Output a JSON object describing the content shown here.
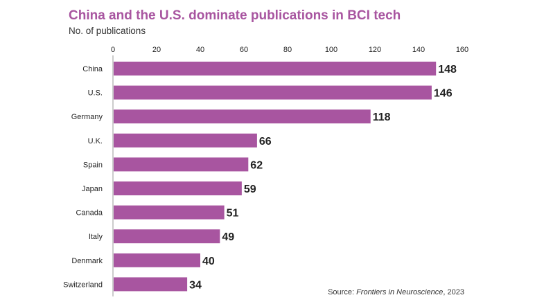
{
  "header": {
    "title": "China and the U.S. dominate publications in BCI tech",
    "subtitle": "No. of publications"
  },
  "source": {
    "prefix": "Source: ",
    "publication": "Frontiers in Neuroscience",
    "suffix": ", 2023"
  },
  "colors": {
    "bar": "#a855a0",
    "title": "#a855a0",
    "axis": "#999999",
    "text": "#222222"
  },
  "chart_data": {
    "type": "bar",
    "orientation": "horizontal",
    "title": "China and the U.S. dominate publications in BCI tech",
    "xlabel": "No. of publications",
    "ylabel": "",
    "xlim": [
      0,
      160
    ],
    "ticks": [
      0,
      20,
      40,
      60,
      80,
      100,
      120,
      140,
      160
    ],
    "tick_position": "top",
    "grid": false,
    "categories": [
      "China",
      "U.S.",
      "Germany",
      "U.K.",
      "Spain",
      "Japan",
      "Canada",
      "Italy",
      "Denmark",
      "Switzerland"
    ],
    "values": [
      148,
      146,
      118,
      66,
      62,
      59,
      51,
      49,
      40,
      34
    ],
    "data_labels": true
  }
}
